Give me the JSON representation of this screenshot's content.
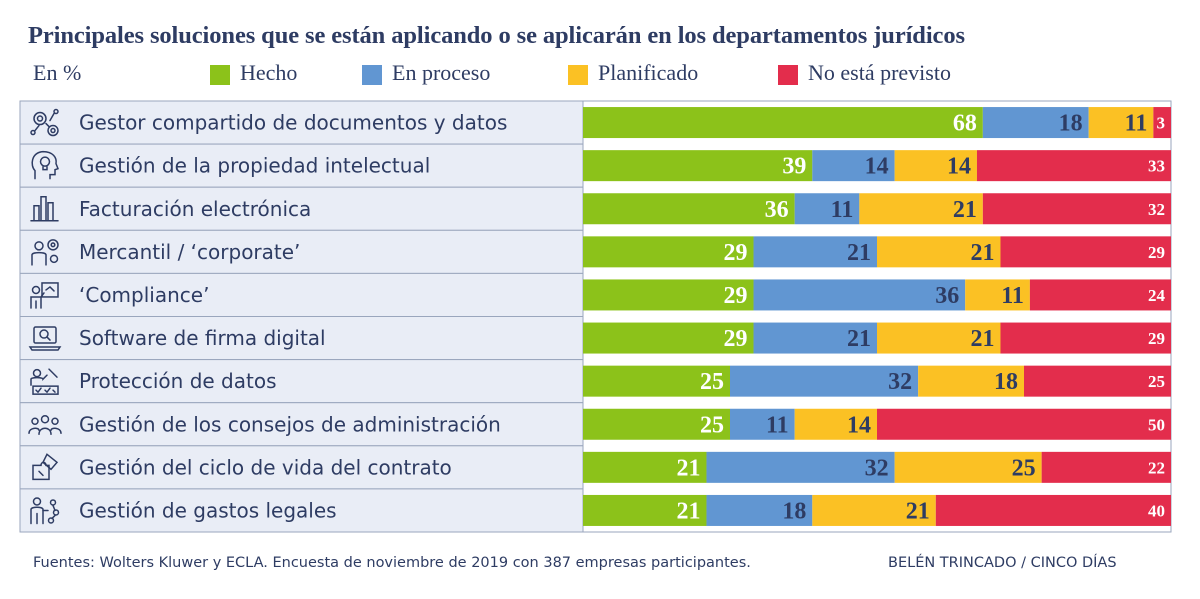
{
  "chart_data": {
    "type": "stacked-bar-horizontal",
    "title": "Principales soluciones que se están aplicando o se aplicarán en los departamentos jurídicos",
    "unit_label": "En %",
    "series": [
      {
        "name": "Hecho",
        "color": "#8cc21a",
        "values": [
          68,
          39,
          36,
          29,
          29,
          29,
          25,
          25,
          21,
          21
        ]
      },
      {
        "name": "En proceso",
        "color": "#6196d2",
        "values": [
          18,
          14,
          11,
          21,
          36,
          21,
          32,
          11,
          32,
          18
        ]
      },
      {
        "name": "Planificado",
        "color": "#fbc124",
        "values": [
          11,
          14,
          21,
          21,
          11,
          21,
          18,
          14,
          25,
          21
        ]
      },
      {
        "name": "No está previsto",
        "color": "#e32d4c",
        "values": [
          3,
          33,
          32,
          29,
          24,
          29,
          25,
          50,
          22,
          40
        ]
      }
    ],
    "categories": [
      {
        "label": "Gestor compartido de documentos y datos",
        "icon": "gears-network-icon"
      },
      {
        "label": "Gestión de la propiedad intelectual",
        "icon": "head-lightbulb-icon"
      },
      {
        "label": "Facturación electrónica",
        "icon": "bar-chart-icon"
      },
      {
        "label": "Mercantil / ‘corporate’",
        "icon": "person-gears-icon"
      },
      {
        "label": "‘Compliance’",
        "icon": "presenter-board-icon"
      },
      {
        "label": "Software de firma digital",
        "icon": "laptop-search-icon"
      },
      {
        "label": "Protección de datos",
        "icon": "person-checklist-icon"
      },
      {
        "label": "Gestión de los consejos de administración",
        "icon": "group-people-icon"
      },
      {
        "label": "Gestión del ciclo de vida del contrato",
        "icon": "puzzle-pieces-icon"
      },
      {
        "label": "Gestión de gastos legales",
        "icon": "person-network-icon"
      }
    ],
    "xlim": [
      0,
      100
    ]
  },
  "footer": {
    "source": "Fuentes: Wolters Kluwer y ECLA. Encuesta de  noviembre de 2019 con 387 empresas participantes.",
    "credit": "BELÉN TRINCADO / CINCO DÍAS"
  }
}
